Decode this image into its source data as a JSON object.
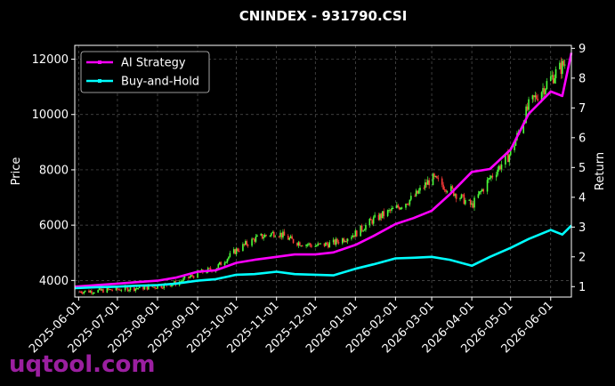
{
  "chart_data": {
    "type": "line",
    "title": "CNINDEX - 931790.CSI",
    "xlabel": "",
    "ylabel": "Price",
    "y2label": "Return",
    "ylim": [
      3400,
      12500
    ],
    "y2lim": [
      0.65,
      9.1
    ],
    "xlim": [
      "2025-05-29",
      "2026-06-17"
    ],
    "grid": true,
    "legend_position": "top-left",
    "x_ticks": [
      "2025-06-01",
      "2025-07-01",
      "2025-08-01",
      "2025-09-01",
      "2025-10-01",
      "2025-11-01",
      "2025-12-01",
      "2026-01-01",
      "2026-02-01",
      "2026-03-01",
      "2026-04-01",
      "2026-05-01",
      "2026-06-01"
    ],
    "y_ticks": [
      4000,
      6000,
      8000,
      10000,
      12000
    ],
    "y2_ticks": [
      1,
      2,
      3,
      4,
      5,
      6,
      7,
      8,
      9
    ],
    "candles_description": "daily OHLC candles (green up, red down) of the index price",
    "price_close": [
      {
        "x": "2025-06-01",
        "y": 3600
      },
      {
        "x": "2025-06-15",
        "y": 3620
      },
      {
        "x": "2025-07-01",
        "y": 3680
      },
      {
        "x": "2025-07-15",
        "y": 3720
      },
      {
        "x": "2025-08-01",
        "y": 3780
      },
      {
        "x": "2025-08-15",
        "y": 3900
      },
      {
        "x": "2025-09-01",
        "y": 4250
      },
      {
        "x": "2025-09-15",
        "y": 4450
      },
      {
        "x": "2025-10-01",
        "y": 5100
      },
      {
        "x": "2025-10-15",
        "y": 5500
      },
      {
        "x": "2025-11-01",
        "y": 5750
      },
      {
        "x": "2025-11-15",
        "y": 5400
      },
      {
        "x": "2025-12-01",
        "y": 5250
      },
      {
        "x": "2025-12-15",
        "y": 5350
      },
      {
        "x": "2026-01-01",
        "y": 5700
      },
      {
        "x": "2026-01-15",
        "y": 6200
      },
      {
        "x": "2026-02-01",
        "y": 6600
      },
      {
        "x": "2026-02-15",
        "y": 7000
      },
      {
        "x": "2026-03-01",
        "y": 7700
      },
      {
        "x": "2026-03-15",
        "y": 7300
      },
      {
        "x": "2026-04-01",
        "y": 6700
      },
      {
        "x": "2026-04-15",
        "y": 7700
      },
      {
        "x": "2026-05-01",
        "y": 8600
      },
      {
        "x": "2026-05-15",
        "y": 10300
      },
      {
        "x": "2026-06-01",
        "y": 11300
      },
      {
        "x": "2026-06-15",
        "y": 12000
      }
    ],
    "series": [
      {
        "name": "AI Strategy",
        "color": "#ff00ff",
        "axis": "right",
        "points": [
          {
            "x": "2025-05-29",
            "y": 1.0
          },
          {
            "x": "2025-06-15",
            "y": 1.05
          },
          {
            "x": "2025-07-01",
            "y": 1.1
          },
          {
            "x": "2025-07-15",
            "y": 1.15
          },
          {
            "x": "2025-08-01",
            "y": 1.2
          },
          {
            "x": "2025-08-15",
            "y": 1.3
          },
          {
            "x": "2025-09-01",
            "y": 1.5
          },
          {
            "x": "2025-09-15",
            "y": 1.55
          },
          {
            "x": "2025-10-01",
            "y": 1.8
          },
          {
            "x": "2025-10-15",
            "y": 1.9
          },
          {
            "x": "2025-11-01",
            "y": 2.0
          },
          {
            "x": "2025-11-15",
            "y": 2.08
          },
          {
            "x": "2025-12-01",
            "y": 2.08
          },
          {
            "x": "2025-12-15",
            "y": 2.15
          },
          {
            "x": "2026-01-01",
            "y": 2.4
          },
          {
            "x": "2026-01-15",
            "y": 2.7
          },
          {
            "x": "2026-02-01",
            "y": 3.1
          },
          {
            "x": "2026-02-15",
            "y": 3.3
          },
          {
            "x": "2026-03-01",
            "y": 3.55
          },
          {
            "x": "2026-03-15",
            "y": 4.1
          },
          {
            "x": "2026-04-01",
            "y": 4.85
          },
          {
            "x": "2026-04-15",
            "y": 4.95
          },
          {
            "x": "2026-05-01",
            "y": 5.6
          },
          {
            "x": "2026-05-15",
            "y": 6.8
          },
          {
            "x": "2026-06-01",
            "y": 7.55
          },
          {
            "x": "2026-06-10",
            "y": 7.4
          },
          {
            "x": "2026-06-17",
            "y": 8.85
          }
        ]
      },
      {
        "name": "Buy-and-Hold",
        "color": "#00ffff",
        "axis": "right",
        "points": [
          {
            "x": "2025-05-29",
            "y": 0.95
          },
          {
            "x": "2025-06-15",
            "y": 0.98
          },
          {
            "x": "2025-07-01",
            "y": 1.0
          },
          {
            "x": "2025-07-15",
            "y": 1.03
          },
          {
            "x": "2025-08-01",
            "y": 1.05
          },
          {
            "x": "2025-08-15",
            "y": 1.1
          },
          {
            "x": "2025-09-01",
            "y": 1.2
          },
          {
            "x": "2025-09-15",
            "y": 1.25
          },
          {
            "x": "2025-10-01",
            "y": 1.4
          },
          {
            "x": "2025-10-15",
            "y": 1.42
          },
          {
            "x": "2025-11-01",
            "y": 1.5
          },
          {
            "x": "2025-11-15",
            "y": 1.42
          },
          {
            "x": "2025-12-01",
            "y": 1.4
          },
          {
            "x": "2025-12-15",
            "y": 1.38
          },
          {
            "x": "2026-01-01",
            "y": 1.6
          },
          {
            "x": "2026-01-15",
            "y": 1.75
          },
          {
            "x": "2026-02-01",
            "y": 1.95
          },
          {
            "x": "2026-02-15",
            "y": 1.97
          },
          {
            "x": "2026-03-01",
            "y": 2.0
          },
          {
            "x": "2026-03-15",
            "y": 1.9
          },
          {
            "x": "2026-04-01",
            "y": 1.7
          },
          {
            "x": "2026-04-15",
            "y": 2.0
          },
          {
            "x": "2026-05-01",
            "y": 2.3
          },
          {
            "x": "2026-05-15",
            "y": 2.6
          },
          {
            "x": "2026-06-01",
            "y": 2.9
          },
          {
            "x": "2026-06-10",
            "y": 2.75
          },
          {
            "x": "2026-06-17",
            "y": 3.05
          }
        ]
      }
    ]
  },
  "watermark": "uqtool.com"
}
